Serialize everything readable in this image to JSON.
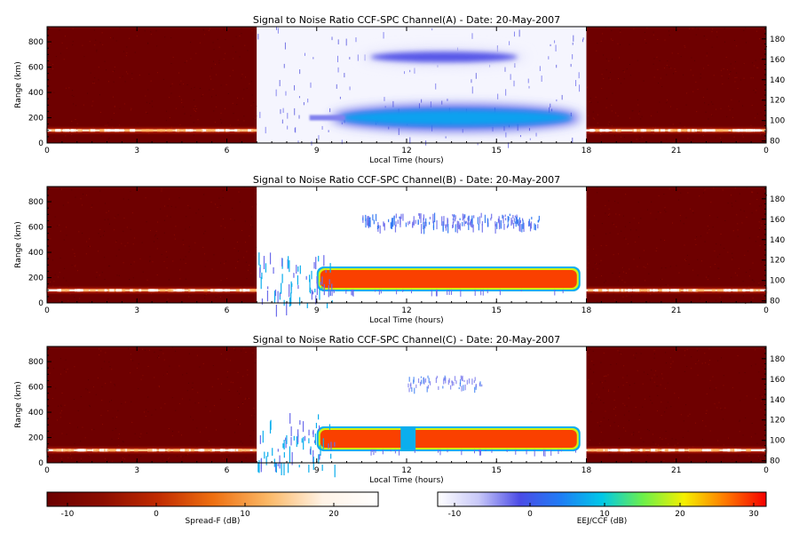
{
  "chart_data": {
    "type": "heatmap",
    "panels": [
      {
        "title": "Signal to Noise Ratio CCF-SPC Channel(A) - Date: 20-May-2007",
        "xlabel": "Local Time (hours)",
        "ylabel": "Range (km)",
        "xlim": [
          0,
          24
        ],
        "xticks": [
          "0",
          "3",
          "6",
          "9",
          "12",
          "15",
          "18",
          "21",
          "0"
        ],
        "ylim": [
          0,
          920
        ],
        "yticks": [
          0,
          200,
          400,
          600,
          800
        ],
        "y2lim": [
          78,
          192
        ],
        "y2ticks": [
          80,
          100,
          120,
          140,
          160,
          180
        ],
        "night_windows": [
          [
            0,
            7
          ],
          [
            18,
            24
          ]
        ],
        "night_echo_range_km": 100,
        "day_window": [
          7,
          18
        ],
        "day_background_db": -12,
        "day_layers": [
          {
            "label": "EEJ",
            "center_km": 200,
            "t_start": 9.5,
            "t_end": 17.8,
            "peak_db": 7
          },
          {
            "label": "150-km echoes",
            "center_km": 680,
            "t_start": 10.5,
            "t_end": 16.0,
            "peak_db": -2
          }
        ]
      },
      {
        "title": "Signal to Noise Ratio CCF-SPC Channel(B) - Date: 20-May-2007",
        "xlabel": "Local Time (hours)",
        "ylabel": "Range (km)",
        "xlim": [
          0,
          24
        ],
        "xticks": [
          "0",
          "3",
          "6",
          "9",
          "12",
          "15",
          "18",
          "21",
          "0"
        ],
        "ylim": [
          0,
          920
        ],
        "yticks": [
          0,
          200,
          400,
          600,
          800
        ],
        "y2lim": [
          78,
          192
        ],
        "y2ticks": [
          80,
          100,
          120,
          140,
          160,
          180
        ],
        "night_windows": [
          [
            0,
            7
          ],
          [
            18,
            24
          ]
        ],
        "night_echo_range_km": 100,
        "day_window": [
          7,
          18
        ],
        "day_background_db": null,
        "day_layers": [
          {
            "label": "EEJ",
            "center_km": 190,
            "t_start": 9.0,
            "t_end": 17.8,
            "peak_db": 30
          },
          {
            "label": "150-km echoes",
            "center_km": 580,
            "t_start": 10.5,
            "t_end": 16.5,
            "peak_db": -5
          }
        ]
      },
      {
        "title": "Signal to Noise Ratio CCF-SPC Channel(C) - Date: 20-May-2007",
        "xlabel": "Local Time (hours)",
        "ylabel": "Range (km)",
        "xlim": [
          0,
          24
        ],
        "xticks": [
          "0",
          "3",
          "6",
          "9",
          "12",
          "15",
          "18",
          "21",
          "0"
        ],
        "ylim": [
          0,
          920
        ],
        "yticks": [
          0,
          200,
          400,
          600,
          800
        ],
        "y2lim": [
          78,
          192
        ],
        "y2ticks": [
          80,
          100,
          120,
          140,
          160,
          180
        ],
        "night_windows": [
          [
            0,
            7
          ],
          [
            18,
            24
          ]
        ],
        "night_echo_range_km": 100,
        "day_window": [
          7,
          18
        ],
        "day_background_db": null,
        "day_layers": [
          {
            "label": "EEJ",
            "center_km": 190,
            "t_start": 9.0,
            "t_end": 17.8,
            "peak_db": 30,
            "gap": [
              11.8,
              12.3
            ]
          },
          {
            "label": "150-km echoes",
            "center_km": 560,
            "t_start": 12.0,
            "t_end": 14.5,
            "peak_db": -10
          }
        ]
      }
    ],
    "colorbars": [
      {
        "label": "Spread-F (dB)",
        "range": [
          -13,
          26
        ],
        "ticks": [
          "-10",
          "0",
          "10",
          "20"
        ],
        "stops": [
          "#6b0000",
          "#8c0d00",
          "#c02a00",
          "#ee6f10",
          "#fbb866",
          "#fff3e6",
          "#ffffff"
        ]
      },
      {
        "label": "EEJ/CCF (dB)",
        "range": [
          -13,
          33
        ],
        "ticks": [
          "-10",
          "0",
          "10",
          "20",
          "30"
        ],
        "stops": [
          "#ffffff",
          "#c8c8f8",
          "#4b4be6",
          "#1f7df5",
          "#00c8e8",
          "#6cf04a",
          "#f5f000",
          "#ff7a00",
          "#f50000"
        ]
      }
    ]
  }
}
